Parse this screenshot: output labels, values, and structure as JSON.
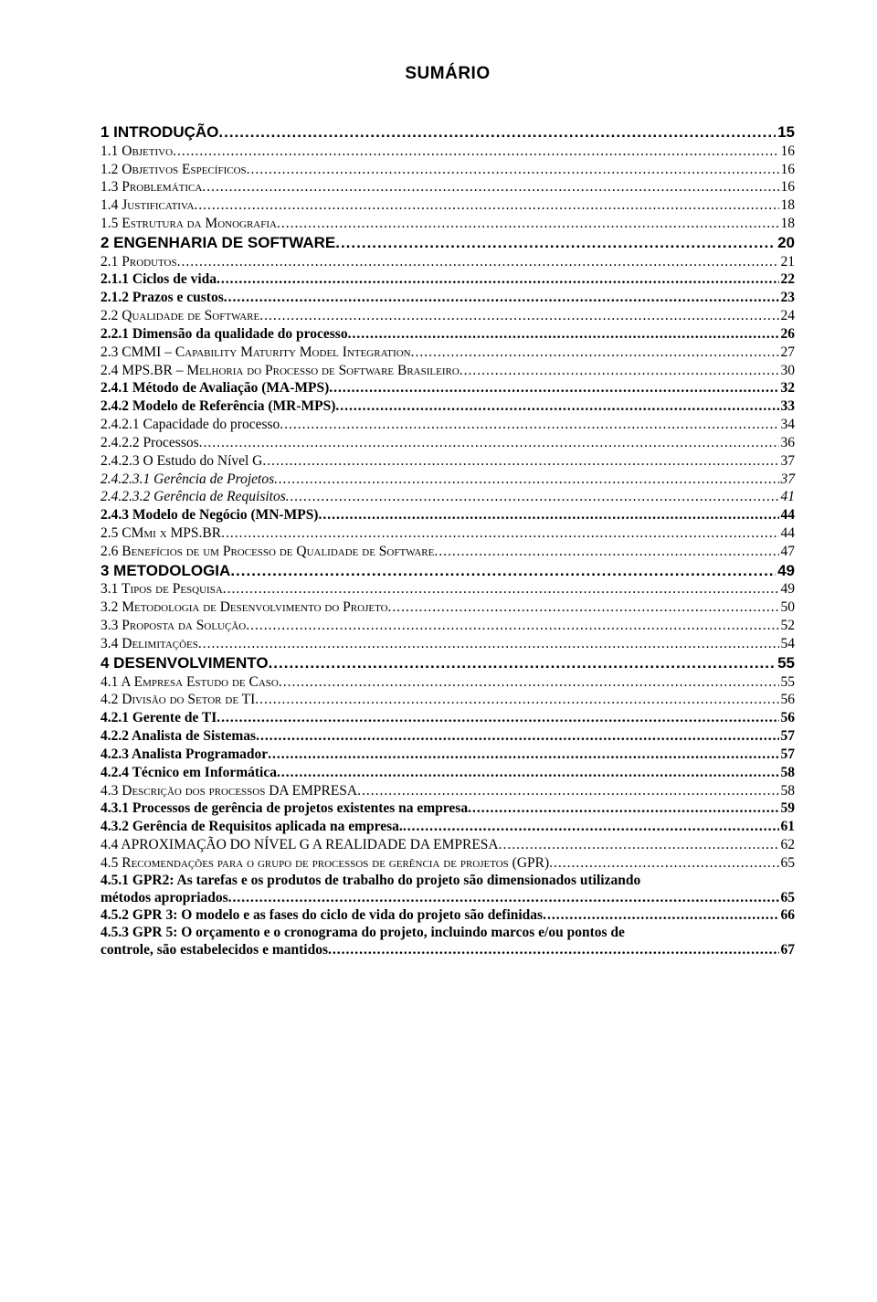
{
  "title": "SUMÁRIO",
  "toc": [
    {
      "level": "lvl1",
      "num": "1",
      "text": "INTRODUÇÃO",
      "page": "15",
      "gapBefore": true
    },
    {
      "level": "lvl2 smallcaps",
      "num": "1.1",
      "text": "Objetivo",
      "page": "16"
    },
    {
      "level": "lvl2 smallcaps",
      "num": "1.2",
      "text": "Objetivos Específicos",
      "page": "16"
    },
    {
      "level": "lvl2 smallcaps",
      "num": "1.3",
      "text": "Problemática",
      "page": "16"
    },
    {
      "level": "lvl2 smallcaps",
      "num": "1.4",
      "text": "Justificativa",
      "page": "18"
    },
    {
      "level": "lvl2 smallcaps",
      "num": "1.5",
      "text": "Estrutura da Monografia",
      "page": "18"
    },
    {
      "level": "lvl1",
      "num": "2",
      "text": "ENGENHARIA DE SOFTWARE",
      "page": "20"
    },
    {
      "level": "lvl2 smallcaps",
      "num": "2.1",
      "text": "Produtos",
      "page": "21"
    },
    {
      "level": "lvl3",
      "num": "2.1.1",
      "text": "Ciclos de vida",
      "page": "22"
    },
    {
      "level": "lvl3",
      "num": "2.1.2",
      "text": "Prazos e custos",
      "page": "23"
    },
    {
      "level": "lvl2 smallcaps",
      "num": "2.2",
      "text": "Qualidade de Software",
      "page": "24"
    },
    {
      "level": "lvl3",
      "num": "2.2.1",
      "text": "Dimensão da qualidade do processo",
      "page": "26"
    },
    {
      "level": "lvl2 smallcaps",
      "num": "2.3",
      "text": "CMMI – Capability Maturity Model Integration",
      "page": "27"
    },
    {
      "level": "lvl2 smallcaps",
      "num": "2.4",
      "text": "MPS.BR – Melhoria do Processo de Software Brasileiro",
      "page": "30"
    },
    {
      "level": "lvl3",
      "num": "2.4.1",
      "text": "Método de Avaliação (MA-MPS)",
      "page": "32"
    },
    {
      "level": "lvl3",
      "num": "2.4.2",
      "text": "Modelo de Referência (MR-MPS)",
      "page": "33"
    },
    {
      "level": "lvl4",
      "num": "2.4.2.1",
      "text": "Capacidade do processo",
      "page": "34"
    },
    {
      "level": "lvl4",
      "num": "2.4.2.2",
      "text": "Processos",
      "page": "36"
    },
    {
      "level": "lvl4",
      "num": "2.4.2.3",
      "text": "O Estudo do Nível G",
      "page": "37"
    },
    {
      "level": "lvl5",
      "num": "2.4.2.3.1",
      "text": "Gerência de Projetos",
      "page": "37"
    },
    {
      "level": "lvl5",
      "num": "2.4.2.3.2",
      "text": "Gerência de Requisitos",
      "page": "41"
    },
    {
      "level": "lvl3",
      "num": "2.4.3",
      "text": "Modelo de Negócio (MN-MPS)",
      "page": "44"
    },
    {
      "level": "lvl2 smallcaps",
      "num": "2.5",
      "text": "CMmi x MPS.BR",
      "page": "44"
    },
    {
      "level": "lvl2 smallcaps",
      "num": "2.6",
      "text": "Benefícios de um Processo de Qualidade de Software",
      "page": "47"
    },
    {
      "level": "lvl1",
      "num": "3",
      "text": "METODOLOGIA",
      "page": "49"
    },
    {
      "level": "lvl2 smallcaps",
      "num": "3.1",
      "text": "Tipos de Pesquisa",
      "page": "49"
    },
    {
      "level": "lvl2 smallcaps",
      "num": "3.2",
      "text": "Metodologia de Desenvolvimento do Projeto",
      "page": "50"
    },
    {
      "level": "lvl2 smallcaps",
      "num": "3.3",
      "text": "Proposta da Solução",
      "page": "52"
    },
    {
      "level": "lvl2 smallcaps",
      "num": "3.4",
      "text": "Delimitações",
      "page": "54"
    },
    {
      "level": "lvl1",
      "num": "4",
      "text": "DESENVOLVIMENTO",
      "page": "55"
    },
    {
      "level": "lvl2 smallcaps",
      "num": "4.1",
      "text": "A Empresa Estudo de Caso",
      "page": "55"
    },
    {
      "level": "lvl2 smallcaps",
      "num": "4.2",
      "text": "Divisão do Setor de TI",
      "page": "56"
    },
    {
      "level": "lvl3",
      "num": "4.2.1",
      "text": "Gerente de TI",
      "page": "56"
    },
    {
      "level": "lvl3",
      "num": "4.2.2",
      "text": "Analista de Sistemas",
      "page": "57"
    },
    {
      "level": "lvl3",
      "num": "4.2.3",
      "text": "Analista Programador",
      "page": "57"
    },
    {
      "level": "lvl3",
      "num": "4.2.4",
      "text": "Técnico em Informática",
      "page": "58"
    },
    {
      "level": "lvl2 smallcaps",
      "num": "4.3",
      "text": "Descrição dos processos DA EMPRESA",
      "page": "58"
    },
    {
      "level": "lvl3",
      "num": "4.3.1",
      "text": "Processos de gerência de projetos existentes na empresa",
      "page": "59"
    },
    {
      "level": "lvl3",
      "num": "4.3.2",
      "text": "Gerência de Requisitos aplicada na empresa.",
      "page": "61"
    },
    {
      "level": "lvl2",
      "num": "4.4",
      "text": "APROXIMAÇÃO DO NÍVEL G A REALIDADE DA EMPRESA",
      "page": "62"
    },
    {
      "level": "lvl2 smallcaps",
      "num": "4.5",
      "text": "Recomendações para o grupo de processos de gerência de projetos (GPR)",
      "page": "65"
    },
    {
      "level": "lvl3",
      "num": "4.5.1",
      "textLines": [
        "GPR2: As tarefas e os produtos de trabalho do projeto são dimensionados utilizando",
        "métodos apropriados"
      ],
      "page": "65"
    },
    {
      "level": "lvl3",
      "num": "4.5.2",
      "text": "GPR 3: O modelo e as fases do ciclo de vida do projeto são definidas",
      "page": "66"
    },
    {
      "level": "lvl3",
      "num": "4.5.3",
      "textLines": [
        "GPR 5: O orçamento e o cronograma do projeto, incluindo marcos e/ou pontos de",
        "controle, são estabelecidos e mantidos"
      ],
      "page": "67"
    }
  ]
}
